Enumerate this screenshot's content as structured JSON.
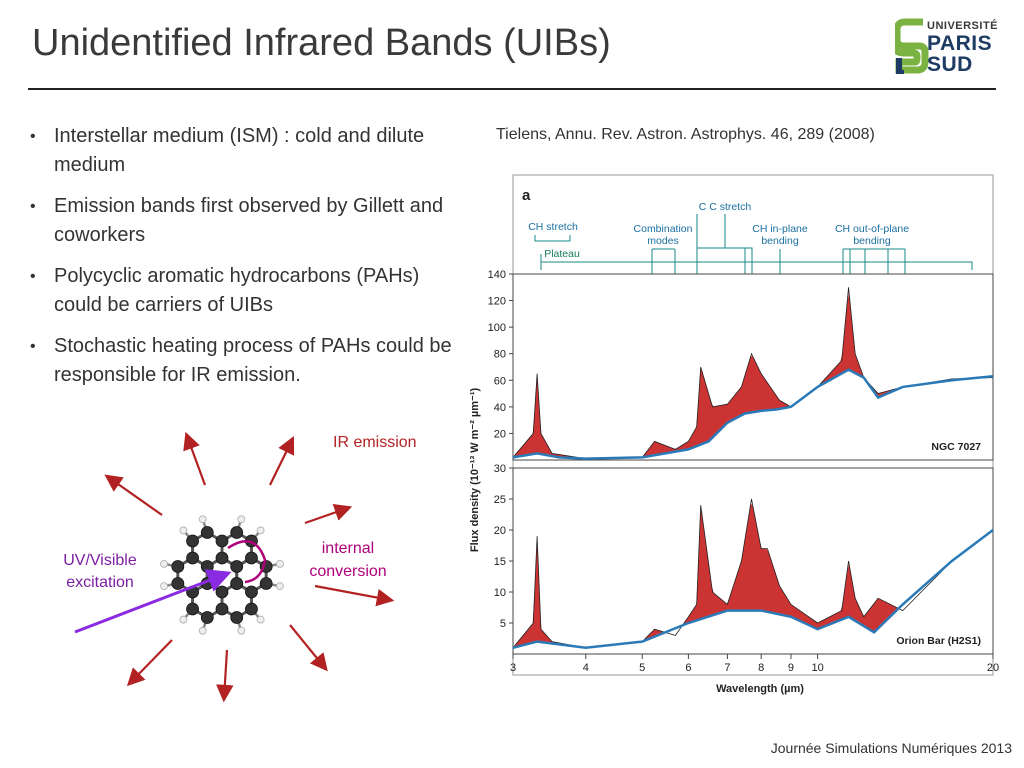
{
  "slide": {
    "title": "Unidentified Infrared Bands (UIBs)",
    "footer": "Journée Simulations Numériques 2013",
    "citation": "Tielens, Annu. Rev. Astron. Astrophys. 46, 289 (2008)",
    "logo": {
      "line1": "UNIVERSITÉ",
      "line2": "PARIS",
      "line3": "SUD"
    }
  },
  "bullets": [
    "Interstellar medium (ISM) : cold and dilute medium",
    "Emission bands first observed by Gillett and coworkers",
    "Polycyclic aromatic hydrocarbons (PAHs) could be carriers of UIBs",
    "Stochastic heating process of PAHs could be responsible for IR emission."
  ],
  "diagram": {
    "ir_label": "IR emission",
    "uv_label_1": "UV/Visible",
    "uv_label_2": "excitation",
    "ic_label_1": "internal",
    "ic_label_2": "conversion",
    "colors": {
      "arrow_red": "#b22222",
      "uv_purple": "#8a2be2",
      "ic_magenta": "#b0007a"
    }
  },
  "chart_data": {
    "type": "line",
    "panel_label": "a",
    "xlabel": "Wavelength (µm)",
    "ylabel": "Flux density (10⁻¹³ W m⁻² µm⁻¹)",
    "x_scale": "log",
    "x_ticks": [
      3,
      4,
      5,
      6,
      7,
      8,
      9,
      10,
      20
    ],
    "xlim": [
      3,
      20
    ],
    "annotations": [
      "CH stretch",
      "Plateau",
      "Combination modes",
      "C C stretch",
      "CH in-plane bending",
      "CH out-of-plane bending"
    ],
    "annotation_lines": {
      "combination": [
        "Combination",
        "modes"
      ],
      "cc": [
        "C C stretch"
      ],
      "inplane": [
        "CH in-plane",
        "bending"
      ],
      "oop": [
        "CH out-of-plane",
        "bending"
      ]
    },
    "panels": [
      {
        "name": "NGC 7027",
        "ylim": [
          0,
          140
        ],
        "y_ticks": [
          20,
          40,
          60,
          80,
          100,
          120,
          140
        ],
        "series": [
          {
            "role": "continuum",
            "x": [
              3.0,
              3.3,
              3.6,
              4.0,
              5.0,
              6.0,
              6.5,
              7.0,
              7.5,
              8.0,
              8.5,
              9.0,
              10.0,
              11.3,
              12.0,
              12.7,
              14.0,
              17.0,
              20.0
            ],
            "y": [
              2,
              5,
              2,
              1,
              2,
              8,
              14,
              28,
              35,
              37,
              38,
              40,
              55,
              68,
              62,
              47,
              55,
              60,
              63
            ]
          },
          {
            "role": "spectrum",
            "x": [
              3.0,
              3.25,
              3.3,
              3.35,
              3.5,
              4.0,
              5.0,
              5.25,
              5.7,
              6.0,
              6.2,
              6.3,
              6.6,
              7.0,
              7.4,
              7.7,
              8.0,
              8.6,
              9.0,
              10.0,
              11.0,
              11.3,
              11.6,
              12.0,
              12.7,
              14.0,
              17.0,
              20.0
            ],
            "y": [
              2,
              20,
              65,
              20,
              5,
              1,
              2,
              14,
              8,
              14,
              25,
              70,
              40,
              42,
              55,
              80,
              65,
              45,
              40,
              55,
              75,
              130,
              80,
              62,
              50,
              55,
              61,
              62
            ]
          }
        ]
      },
      {
        "name": "Orion Bar (H2S1)",
        "ylim": [
          0,
          30
        ],
        "y_ticks": [
          5,
          10,
          15,
          20,
          25,
          30
        ],
        "series": [
          {
            "role": "continuum",
            "x": [
              3.0,
              3.3,
              4.0,
              5.0,
              6.0,
              7.0,
              8.0,
              9.0,
              10.0,
              11.3,
              12.5,
              14.0,
              17.0,
              20.0
            ],
            "y": [
              1,
              2,
              1,
              2,
              5,
              7,
              7,
              6,
              4,
              6,
              3.5,
              8,
              15,
              20
            ]
          },
          {
            "role": "spectrum",
            "x": [
              3.0,
              3.25,
              3.3,
              3.35,
              3.5,
              4.0,
              5.0,
              5.25,
              5.7,
              6.0,
              6.2,
              6.3,
              6.6,
              7.0,
              7.4,
              7.7,
              8.0,
              8.2,
              8.6,
              9.0,
              10.0,
              11.0,
              11.3,
              11.6,
              12.0,
              12.7,
              14.0,
              17.0,
              20.0
            ],
            "y": [
              1,
              5,
              19,
              4,
              2,
              1,
              2,
              4,
              3,
              6,
              8,
              24,
              10,
              8,
              15,
              25,
              17,
              17,
              11,
              8,
              5,
              7,
              15,
              9,
              6,
              9,
              7,
              15,
              20
            ]
          }
        ]
      }
    ]
  }
}
